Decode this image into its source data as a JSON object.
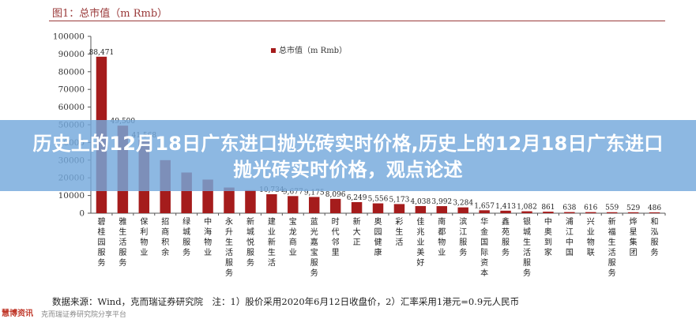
{
  "header": {
    "figure_title": "图1：总市值（m Rmb）"
  },
  "banner": {
    "title": "历史上的12月18日广东进口抛光砖实时价格,历史上的12月18日广东进口抛光砖实时价格，观点论述"
  },
  "footer": {
    "source": "数据来源：Wind，克而瑞证券研究院　注：1）股价采用2020年6月12日收盘价，2）汇率采用1港元=0.9元人民币",
    "subline": "克而瑞证券研究院分享平台",
    "watermark": "慧博资讯"
  },
  "colors": {
    "bar": "#a51c1c",
    "axis": "#555555"
  },
  "chart_data": {
    "type": "bar",
    "title": "图1：总市值（m Rmb）",
    "legend": {
      "label": "总市值（m Rmb）",
      "position": "top-center"
    },
    "ylim": [
      0,
      100000
    ],
    "yticks": [
      "0",
      "10000",
      "20000",
      "30000",
      "40000",
      "50000",
      "60000",
      "70000",
      "80000",
      "90000",
      "100000"
    ],
    "grid": false,
    "categories": [
      "碧桂园服务",
      "雅生活服务",
      "保利物业",
      "招商积余",
      "绿城服务",
      "中海物业",
      "永升生活服务",
      "新城悦服务",
      "建业新生活",
      "宝龙商业",
      "蓝光嘉宝服务",
      "时代邻里",
      "新大正",
      "奥园健康",
      "彩生活",
      "佳兆业美好",
      "南都物业",
      "滨江服务",
      "华金国际资本",
      "鑫苑服务",
      "银城生活服务",
      "中奥到家",
      "浦江中国",
      "兴业物联",
      "新福生活服务",
      "烨星集团",
      "和泓服务"
    ],
    "values": [
      88471,
      49500,
      41568,
      30000,
      23000,
      19000,
      14500,
      13000,
      10734,
      9677,
      9175,
      8096,
      6249,
      5556,
      5173,
      4038,
      3992,
      3284,
      1657,
      1413,
      1082,
      861,
      638,
      616,
      559,
      529,
      486
    ],
    "data_labels": [
      "88,471",
      "49,500",
      "41,568",
      "",
      "",
      "",
      "",
      "",
      "10,734",
      "9,677",
      "9,175",
      "8,096",
      "6,249",
      "5,556",
      "5,173",
      "4,038",
      "3,992",
      "3,284",
      "1,657",
      "1,413",
      "1,082",
      "861",
      "638",
      "616",
      "559",
      "529",
      "486"
    ]
  }
}
